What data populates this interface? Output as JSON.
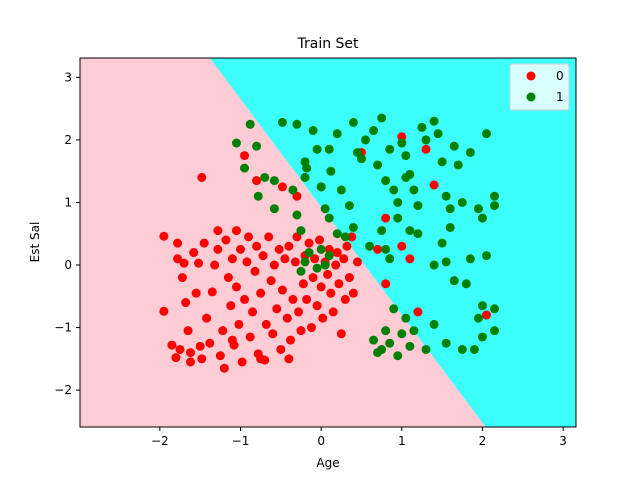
{
  "chart_data": {
    "type": "scatter",
    "title": "Train Set",
    "xlabel": "Age",
    "ylabel": "Est Sal",
    "xlim": [
      -2.99,
      3.16
    ],
    "ylim": [
      -2.59,
      3.31
    ],
    "xticks": [
      -2,
      -1,
      0,
      1,
      2,
      3
    ],
    "yticks": [
      -2,
      -1,
      0,
      1,
      2,
      3
    ],
    "grid": false,
    "legend_position": "upper right",
    "decision_boundary": {
      "x": [
        -1.38,
        2.04
      ],
      "y": [
        3.31,
        -2.59
      ],
      "region_colors": {
        "0": "#ffcbd4",
        "1": "#3cfffb"
      }
    },
    "series": [
      {
        "name": "0",
        "color": "#ff0000",
        "points": [
          [
            -1.95,
            0.46
          ],
          [
            -1.95,
            -0.74
          ],
          [
            -1.85,
            -1.28
          ],
          [
            -1.8,
            -1.48
          ],
          [
            -1.78,
            0.35
          ],
          [
            -1.78,
            0.1
          ],
          [
            -1.75,
            -1.35
          ],
          [
            -1.72,
            -0.2
          ],
          [
            -1.7,
            0.03
          ],
          [
            -1.68,
            -0.6
          ],
          [
            -1.65,
            -1.05
          ],
          [
            -1.62,
            -1.55
          ],
          [
            -1.58,
            0.2
          ],
          [
            -1.55,
            -0.45
          ],
          [
            -1.52,
            0.03
          ],
          [
            -1.5,
            -1.3
          ],
          [
            -1.48,
            -1.5
          ],
          [
            -1.45,
            0.35
          ],
          [
            -1.42,
            -0.85
          ],
          [
            -1.38,
            -1.25
          ],
          [
            -1.35,
            -0.43
          ],
          [
            -1.32,
            0.0
          ],
          [
            -1.28,
            0.55
          ],
          [
            -1.28,
            0.25
          ],
          [
            -1.25,
            -1.45
          ],
          [
            -1.22,
            -1.05
          ],
          [
            -1.2,
            -1.65
          ],
          [
            -1.18,
            0.4
          ],
          [
            -1.15,
            -0.2
          ],
          [
            -1.12,
            -0.65
          ],
          [
            -1.1,
            0.1
          ],
          [
            -1.08,
            -1.28
          ],
          [
            -1.05,
            0.55
          ],
          [
            -1.05,
            -0.35
          ],
          [
            -1.02,
            -0.95
          ],
          [
            -1.0,
            0.25
          ],
          [
            -0.98,
            -1.55
          ],
          [
            -0.95,
            -0.55
          ],
          [
            -0.92,
            0.05
          ],
          [
            -0.9,
            0.45
          ],
          [
            -0.88,
            -1.15
          ],
          [
            -0.85,
            -0.75
          ],
          [
            -0.82,
            -0.1
          ],
          [
            -0.8,
            0.3
          ],
          [
            -0.78,
            -1.42
          ],
          [
            -0.75,
            -0.45
          ],
          [
            -0.72,
            0.15
          ],
          [
            -0.7,
            -1.52
          ],
          [
            -0.68,
            -0.95
          ],
          [
            -0.65,
            0.45
          ],
          [
            -0.62,
            -0.25
          ],
          [
            -0.6,
            -1.1
          ],
          [
            -0.58,
            0.0
          ],
          [
            -0.55,
            -0.7
          ],
          [
            -0.52,
            0.25
          ],
          [
            -0.5,
            -1.35
          ],
          [
            -0.48,
            -0.4
          ],
          [
            -0.45,
            0.1
          ],
          [
            -0.42,
            -0.85
          ],
          [
            -0.4,
            0.3
          ],
          [
            -0.38,
            -1.2
          ],
          [
            -0.35,
            -0.55
          ],
          [
            -0.32,
            0.05
          ],
          [
            -0.3,
            0.45
          ],
          [
            -0.28,
            -0.75
          ],
          [
            -0.25,
            -1.05
          ],
          [
            -0.22,
            -0.3
          ],
          [
            -0.2,
            0.15
          ],
          [
            -0.18,
            -0.55
          ],
          [
            -0.15,
            0.35
          ],
          [
            -0.12,
            -1.0
          ],
          [
            -0.1,
            -0.2
          ],
          [
            -0.08,
            0.1
          ],
          [
            -0.05,
            -0.65
          ],
          [
            -0.02,
            0.4
          ],
          [
            0.0,
            -0.35
          ],
          [
            0.02,
            -0.85
          ],
          [
            0.05,
            0.05
          ],
          [
            0.08,
            -0.15
          ],
          [
            0.1,
            0.25
          ],
          [
            0.12,
            -0.45
          ],
          [
            0.15,
            -0.75
          ],
          [
            0.18,
            0.0
          ],
          [
            0.2,
            0.2
          ],
          [
            0.22,
            -0.3
          ],
          [
            0.25,
            -1.1
          ],
          [
            0.28,
            0.1
          ],
          [
            0.3,
            -0.55
          ],
          [
            0.32,
            0.3
          ],
          [
            0.35,
            -0.2
          ],
          [
            0.38,
            0.45
          ],
          [
            0.4,
            -0.45
          ],
          [
            0.45,
            0.05
          ],
          [
            -1.48,
            1.4
          ],
          [
            -0.95,
            1.75
          ],
          [
            -0.8,
            1.35
          ],
          [
            -0.48,
            1.25
          ],
          [
            -0.3,
            1.1
          ],
          [
            0.0,
            1.25
          ],
          [
            0.5,
            1.8
          ],
          [
            0.8,
            0.75
          ],
          [
            0.8,
            -0.3
          ],
          [
            0.7,
            0.25
          ],
          [
            1.0,
            2.05
          ],
          [
            1.0,
            0.3
          ],
          [
            1.1,
            0.1
          ],
          [
            1.2,
            -0.75
          ],
          [
            1.3,
            1.85
          ],
          [
            1.4,
            1.28
          ],
          [
            2.05,
            -0.8
          ],
          [
            -0.4,
            -1.5
          ],
          [
            -0.75,
            -1.5
          ],
          [
            -1.62,
            -1.4
          ],
          [
            -1.1,
            -1.2
          ]
        ]
      },
      {
        "name": "1",
        "color": "#008000",
        "points": [
          [
            -1.05,
            1.95
          ],
          [
            -0.88,
            2.25
          ],
          [
            -0.8,
            1.9
          ],
          [
            -0.95,
            1.55
          ],
          [
            -0.78,
            1.1
          ],
          [
            -0.7,
            1.4
          ],
          [
            -0.58,
            1.35
          ],
          [
            -0.58,
            0.9
          ],
          [
            -0.48,
            2.28
          ],
          [
            -0.35,
            1.2
          ],
          [
            -0.3,
            2.25
          ],
          [
            -0.2,
            1.65
          ],
          [
            -0.2,
            1.4
          ],
          [
            -0.18,
            1.55
          ],
          [
            -0.1,
            2.15
          ],
          [
            -0.05,
            1.85
          ],
          [
            0.0,
            1.25
          ],
          [
            0.05,
            0.9
          ],
          [
            0.1,
            1.85
          ],
          [
            0.12,
            1.5
          ],
          [
            0.2,
            2.1
          ],
          [
            0.25,
            1.2
          ],
          [
            0.35,
            0.95
          ],
          [
            0.4,
            2.28
          ],
          [
            0.45,
            1.8
          ],
          [
            0.5,
            1.7
          ],
          [
            0.55,
            2.0
          ],
          [
            0.65,
            2.15
          ],
          [
            0.7,
            1.6
          ],
          [
            0.75,
            2.35
          ],
          [
            0.8,
            1.35
          ],
          [
            0.85,
            1.85
          ],
          [
            0.9,
            1.2
          ],
          [
            0.95,
            1.0
          ],
          [
            1.0,
            1.95
          ],
          [
            1.05,
            1.75
          ],
          [
            1.1,
            1.45
          ],
          [
            1.15,
            1.2
          ],
          [
            1.2,
            0.95
          ],
          [
            1.25,
            2.2
          ],
          [
            1.3,
            2.0
          ],
          [
            1.4,
            2.3
          ],
          [
            1.45,
            2.1
          ],
          [
            1.5,
            1.65
          ],
          [
            1.55,
            1.1
          ],
          [
            1.6,
            0.9
          ],
          [
            1.65,
            1.9
          ],
          [
            1.7,
            1.6
          ],
          [
            1.75,
            1.0
          ],
          [
            1.85,
            1.8
          ],
          [
            1.95,
            0.9
          ],
          [
            2.0,
            0.75
          ],
          [
            2.05,
            2.1
          ],
          [
            2.15,
            1.1
          ],
          [
            2.15,
            0.95
          ],
          [
            0.75,
            0.55
          ],
          [
            0.8,
            0.25
          ],
          [
            0.85,
            0.1
          ],
          [
            0.95,
            0.75
          ],
          [
            1.1,
            0.55
          ],
          [
            1.2,
            0.5
          ],
          [
            1.4,
            0.0
          ],
          [
            1.5,
            0.35
          ],
          [
            1.55,
            0.05
          ],
          [
            1.65,
            -0.25
          ],
          [
            1.85,
            0.1
          ],
          [
            2.05,
            0.15
          ],
          [
            1.8,
            -0.3
          ],
          [
            1.9,
            -1.35
          ],
          [
            2.0,
            -0.65
          ],
          [
            2.15,
            -0.7
          ],
          [
            2.15,
            -1.05
          ],
          [
            2.0,
            -1.15
          ],
          [
            1.75,
            -1.35
          ],
          [
            1.55,
            -1.25
          ],
          [
            1.4,
            -0.95
          ],
          [
            1.3,
            -1.35
          ],
          [
            1.15,
            -1.05
          ],
          [
            1.1,
            -1.3
          ],
          [
            1.05,
            -0.85
          ],
          [
            1.0,
            -1.1
          ],
          [
            0.95,
            -1.45
          ],
          [
            0.9,
            -0.7
          ],
          [
            0.85,
            -1.25
          ],
          [
            0.8,
            -1.05
          ],
          [
            0.75,
            -1.35
          ],
          [
            0.7,
            -1.4
          ],
          [
            0.65,
            -1.2
          ],
          [
            0.0,
            0.25
          ],
          [
            0.05,
            0.0
          ],
          [
            0.1,
            0.15
          ],
          [
            -0.05,
            -0.05
          ],
          [
            -0.15,
            0.2
          ],
          [
            -0.2,
            0.05
          ],
          [
            -0.25,
            -0.1
          ],
          [
            -0.3,
            0.8
          ],
          [
            -0.25,
            0.55
          ],
          [
            0.1,
            0.75
          ],
          [
            0.2,
            0.5
          ],
          [
            0.3,
            0.45
          ],
          [
            0.4,
            0.6
          ],
          [
            0.6,
            0.3
          ],
          [
            1.6,
            0.6
          ],
          [
            1.95,
            -0.85
          ],
          [
            1.05,
            1.4
          ]
        ]
      }
    ]
  }
}
